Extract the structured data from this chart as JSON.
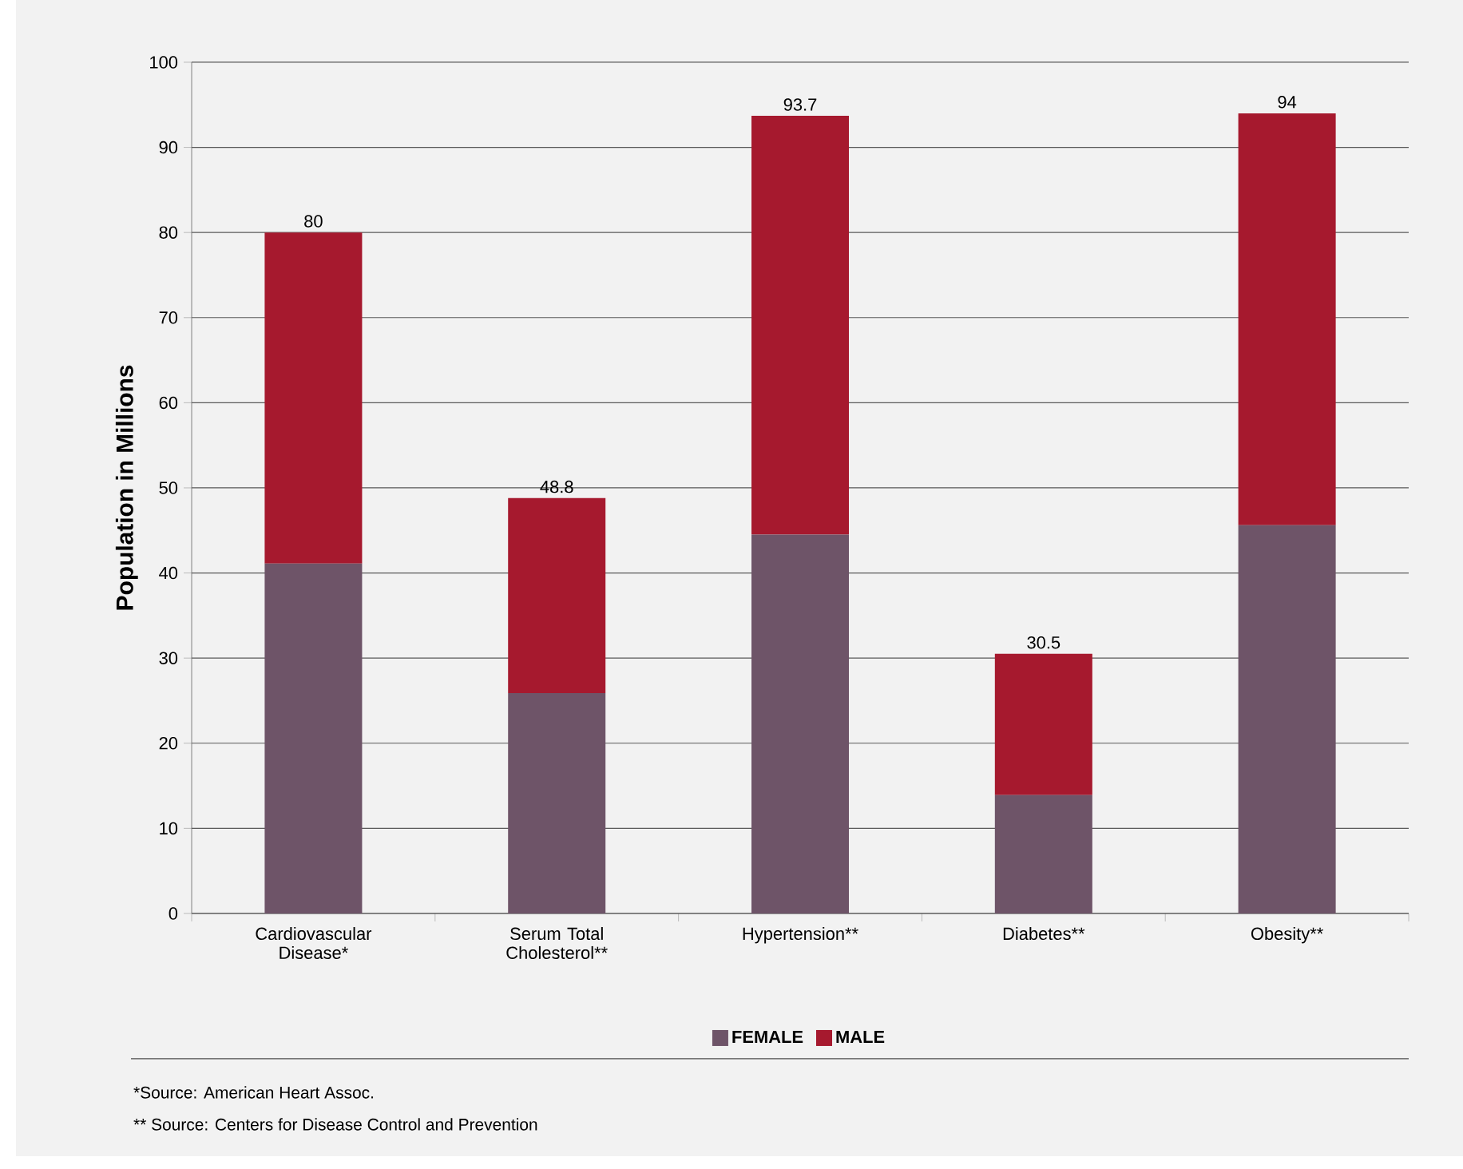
{
  "chart_data": {
    "type": "bar",
    "stacked": true,
    "ylabel": "Population in Millions",
    "categories": [
      "Cardiovascular Disease*",
      "Serum Total Cholesterol**",
      "Hypertension**",
      "Diabetes**",
      "Obesity**"
    ],
    "series": [
      {
        "name": "FEMALE",
        "color": "#6e5468",
        "values": [
          41.1,
          25.9,
          44.5,
          13.9,
          45.6
        ]
      },
      {
        "name": "MALE",
        "color": "#a6192e",
        "values": [
          38.9,
          22.9,
          49.2,
          16.6,
          48.4
        ]
      }
    ],
    "totals": [
      "80",
      "48.8",
      "93.7",
      "30.5",
      "94"
    ],
    "ylim": [
      0,
      100
    ],
    "yticks": [
      0,
      10,
      20,
      30,
      40,
      50,
      60,
      70,
      80,
      90,
      100
    ],
    "grid": "y",
    "legend": "bottom",
    "annotations": [
      "*Source: American Heart Assoc.",
      "** Source: Centers for Disease Control and Prevention"
    ]
  }
}
